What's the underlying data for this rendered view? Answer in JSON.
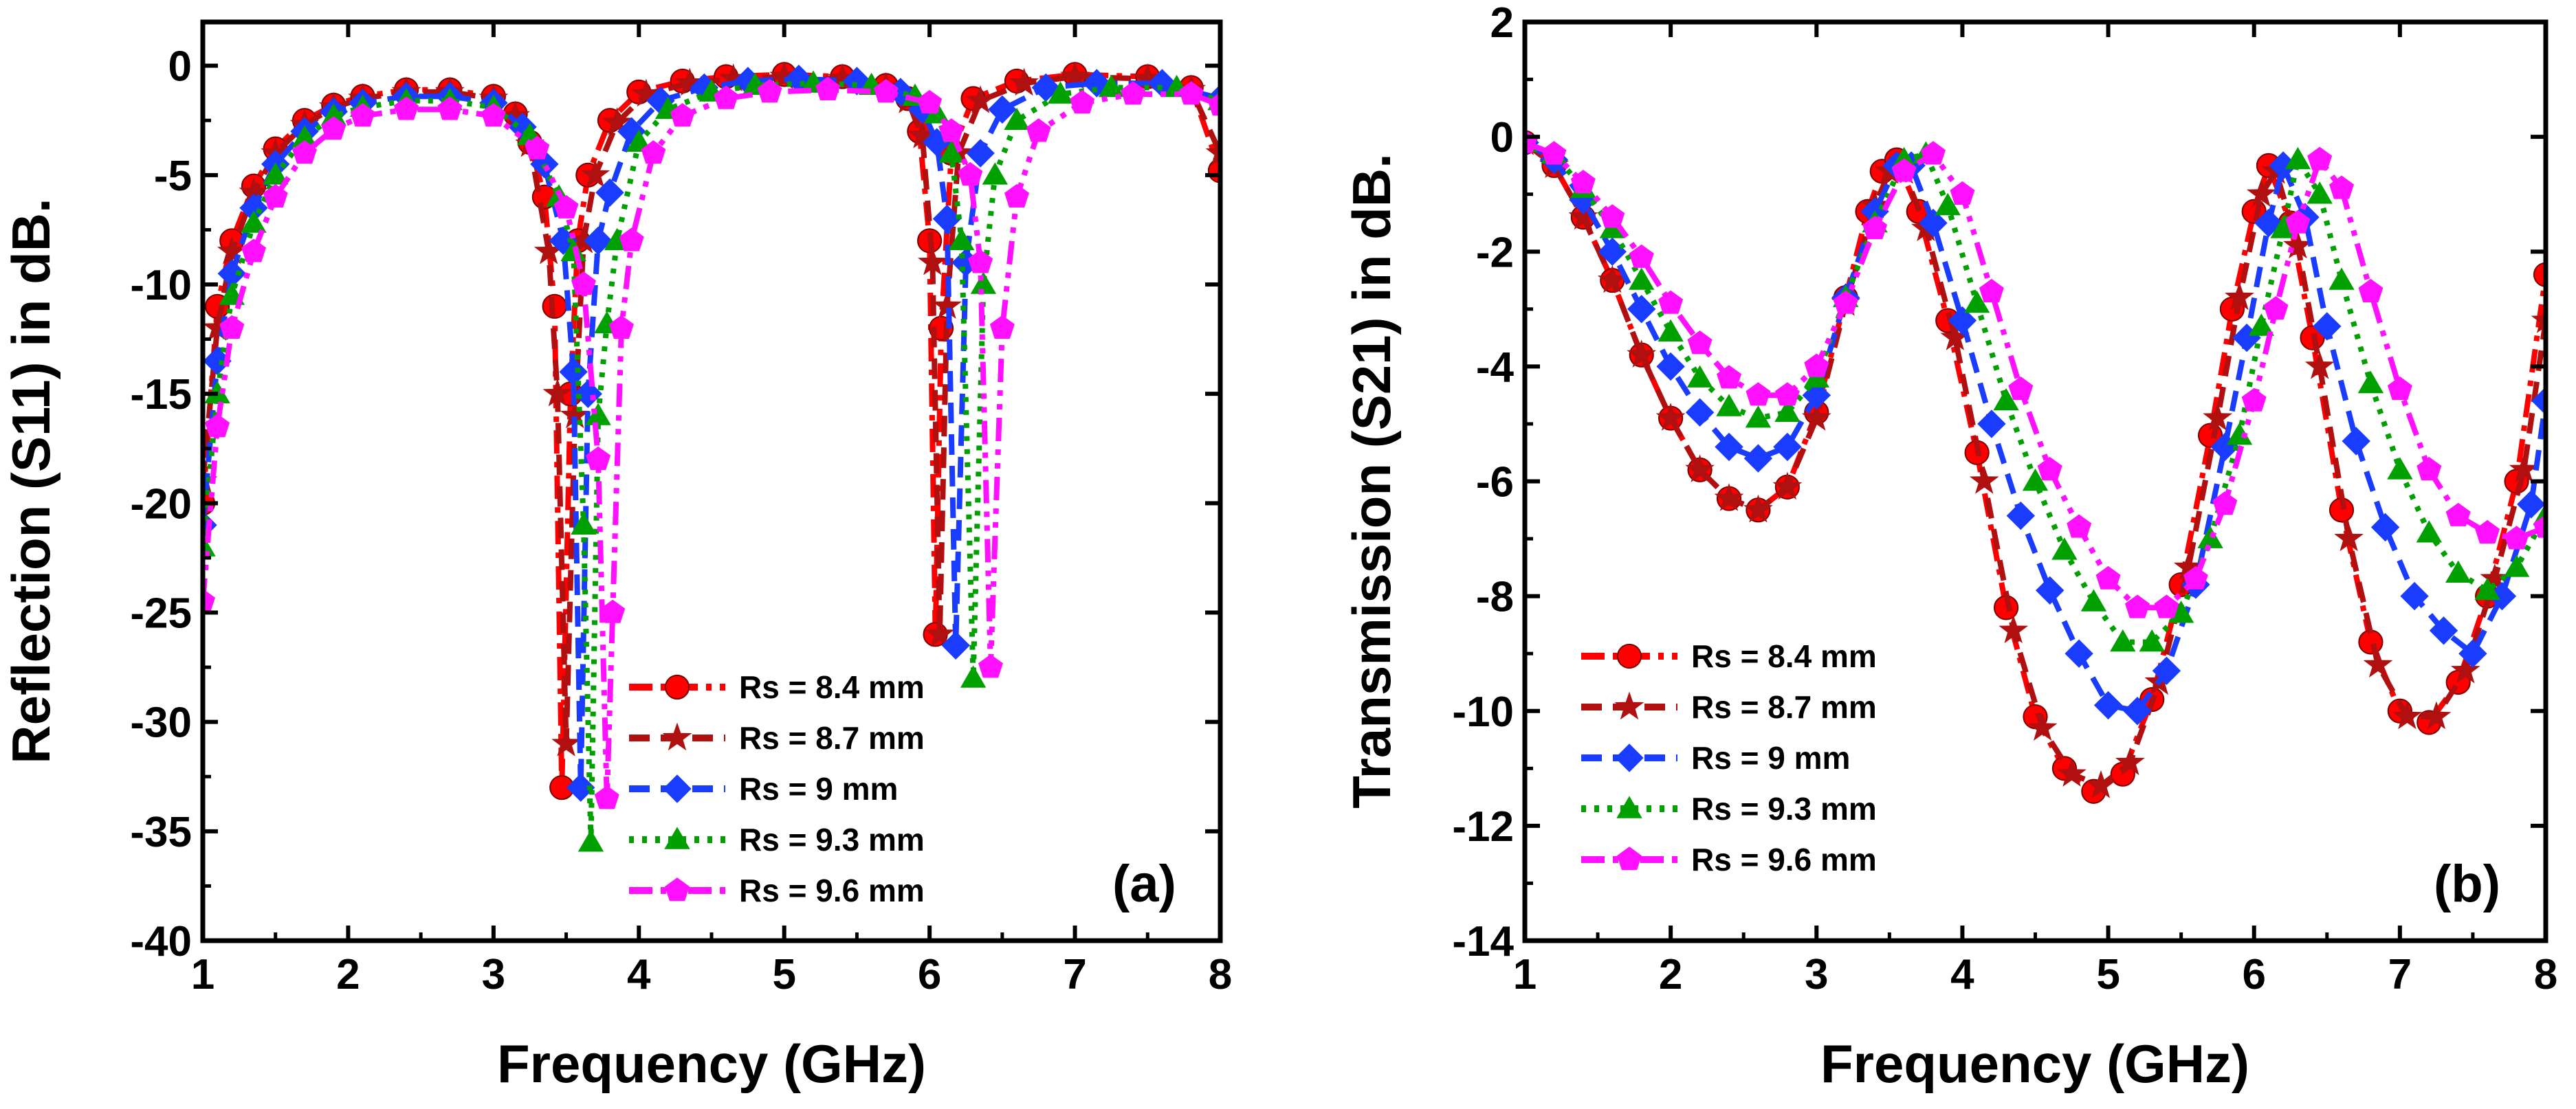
{
  "chart_data": [
    {
      "id": "a",
      "type": "line",
      "panel_label": "(a)",
      "xlabel": "Frequency (GHz)",
      "ylabel": "Reflection (S11) in dB.",
      "xlim": [
        1,
        8
      ],
      "ylim": [
        -40,
        2
      ],
      "xticks": [
        "1",
        "2",
        "3",
        "4",
        "5",
        "6",
        "7",
        "8"
      ],
      "yticks": [
        "0",
        "-5",
        "-10",
        "-15",
        "-20",
        "-25",
        "-30",
        "-35",
        "-40"
      ],
      "legend_position": "bottom-center",
      "series": [
        {
          "name": "Rs  = 8.4 mm",
          "color": "#ff0000",
          "marker": "circle",
          "dash": "dash-dot",
          "x": [
            1.0,
            1.1,
            1.2,
            1.35,
            1.5,
            1.7,
            1.9,
            2.1,
            2.4,
            2.7,
            3.0,
            3.15,
            3.25,
            3.35,
            3.42,
            3.47,
            3.53,
            3.58,
            3.65,
            3.8,
            4.0,
            4.3,
            4.6,
            5.0,
            5.4,
            5.7,
            5.85,
            5.93,
            6.0,
            6.04,
            6.08,
            6.15,
            6.3,
            6.6,
            7.0,
            7.5,
            7.8,
            8.0
          ],
          "y": [
            -20,
            -11,
            -8,
            -5.5,
            -3.8,
            -2.5,
            -1.8,
            -1.4,
            -1.1,
            -1.1,
            -1.4,
            -2.2,
            -3.5,
            -6,
            -11,
            -33,
            -15,
            -8,
            -5,
            -2.5,
            -1.2,
            -0.7,
            -0.5,
            -0.4,
            -0.5,
            -0.9,
            -1.5,
            -3,
            -8,
            -26,
            -12,
            -4,
            -1.5,
            -0.7,
            -0.4,
            -0.5,
            -1.0,
            -4.8
          ]
        },
        {
          "name": "Rs = 8.7 mm",
          "color": "#b01010",
          "marker": "star",
          "dash": "dash",
          "x": [
            1.0,
            1.1,
            1.2,
            1.35,
            1.5,
            1.7,
            1.9,
            2.1,
            2.4,
            2.7,
            3.0,
            3.15,
            3.25,
            3.38,
            3.44,
            3.5,
            3.56,
            3.62,
            3.7,
            3.85,
            4.05,
            4.35,
            4.65,
            5.0,
            5.4,
            5.7,
            5.85,
            5.95,
            6.02,
            6.07,
            6.12,
            6.2,
            6.35,
            6.65,
            7.0,
            7.5,
            7.8,
            8.0
          ],
          "y": [
            -19,
            -12,
            -8.5,
            -5.8,
            -4,
            -2.7,
            -1.9,
            -1.5,
            -1.2,
            -1.2,
            -1.5,
            -2.3,
            -3.6,
            -8.5,
            -15,
            -31,
            -16,
            -8,
            -5,
            -2.6,
            -1.3,
            -0.8,
            -0.6,
            -0.5,
            -0.6,
            -1.0,
            -1.6,
            -3.2,
            -9,
            -26,
            -11,
            -4,
            -1.6,
            -0.8,
            -0.5,
            -0.6,
            -1.1,
            -4
          ]
        },
        {
          "name": "Rs = 9 mm",
          "color": "#1a3cff",
          "marker": "diamond",
          "dash": "dash",
          "x": [
            1.0,
            1.1,
            1.2,
            1.35,
            1.5,
            1.7,
            1.9,
            2.1,
            2.4,
            2.7,
            3.0,
            3.2,
            3.35,
            3.48,
            3.55,
            3.6,
            3.65,
            3.72,
            3.8,
            3.95,
            4.15,
            4.45,
            4.75,
            5.1,
            5.5,
            5.8,
            5.95,
            6.05,
            6.12,
            6.18,
            6.25,
            6.35,
            6.5,
            6.8,
            7.15,
            7.6,
            8.0
          ],
          "y": [
            -21,
            -13.5,
            -9.5,
            -6.5,
            -4.5,
            -3.0,
            -2.1,
            -1.7,
            -1.4,
            -1.4,
            -1.7,
            -2.8,
            -4.5,
            -8,
            -14,
            -33,
            -15,
            -8,
            -5.8,
            -3,
            -1.6,
            -1,
            -0.7,
            -0.6,
            -0.7,
            -1.2,
            -2,
            -3.5,
            -7,
            -26.5,
            -9,
            -4,
            -2,
            -1,
            -0.8,
            -0.8,
            -1.5
          ]
        },
        {
          "name": "Rs = 9.3 mm",
          "color": "#00a000",
          "marker": "triangle",
          "dash": "dot",
          "x": [
            1.0,
            1.1,
            1.2,
            1.35,
            1.5,
            1.7,
            1.9,
            2.1,
            2.4,
            2.7,
            3.0,
            3.25,
            3.45,
            3.55,
            3.62,
            3.67,
            3.72,
            3.78,
            3.85,
            4.0,
            4.2,
            4.5,
            4.8,
            5.2,
            5.6,
            5.9,
            6.05,
            6.15,
            6.22,
            6.3,
            6.37,
            6.45,
            6.6,
            6.9,
            7.25,
            7.7,
            8.0
          ],
          "y": [
            -22,
            -15,
            -10.5,
            -7.2,
            -5,
            -3.3,
            -2.3,
            -1.9,
            -1.6,
            -1.6,
            -1.9,
            -3.2,
            -6,
            -8.5,
            -21,
            -35.5,
            -16,
            -11.8,
            -8,
            -3.5,
            -2,
            -1.2,
            -0.9,
            -0.8,
            -0.9,
            -1.4,
            -2.2,
            -4,
            -8,
            -28,
            -10,
            -5,
            -2.5,
            -1.3,
            -1,
            -1,
            -1.6
          ]
        },
        {
          "name": "Rs = 9.6 mm",
          "color": "#ff10ff",
          "marker": "pentagon",
          "dash": "dash-dot-dot",
          "x": [
            1.0,
            1.1,
            1.2,
            1.35,
            1.5,
            1.7,
            1.9,
            2.1,
            2.4,
            2.7,
            3.0,
            3.3,
            3.5,
            3.62,
            3.72,
            3.78,
            3.82,
            3.88,
            3.95,
            4.1,
            4.3,
            4.6,
            4.9,
            5.3,
            5.7,
            6.0,
            6.15,
            6.28,
            6.35,
            6.42,
            6.5,
            6.6,
            6.75,
            7.05,
            7.4,
            7.8,
            8.0
          ],
          "y": [
            -24.5,
            -16.5,
            -12,
            -8.5,
            -6,
            -4,
            -2.9,
            -2.3,
            -2,
            -2,
            -2.3,
            -3.8,
            -6.5,
            -10,
            -18,
            -33.5,
            -25,
            -12,
            -8,
            -4,
            -2.3,
            -1.5,
            -1.2,
            -1.1,
            -1.2,
            -1.7,
            -3,
            -5,
            -9,
            -27.5,
            -12,
            -6,
            -3,
            -1.7,
            -1.3,
            -1.3,
            -1.8
          ]
        }
      ]
    },
    {
      "id": "b",
      "type": "line",
      "panel_label": "(b)",
      "xlabel": "Frequency (GHz)",
      "ylabel": "Transmission (S21) in dB.",
      "xlim": [
        1,
        8
      ],
      "ylim": [
        -14,
        2
      ],
      "xticks": [
        "1",
        "2",
        "3",
        "4",
        "5",
        "6",
        "7",
        "8"
      ],
      "yticks": [
        "2",
        "0",
        "-2",
        "-4",
        "-6",
        "-8",
        "-10",
        "-12",
        "-14"
      ],
      "legend_position": "bottom-left",
      "series": [
        {
          "name": "Rs = 8.4 mm",
          "color": "#ff0000",
          "marker": "circle",
          "dash": "dash-dot",
          "x": [
            1.0,
            1.2,
            1.4,
            1.6,
            1.8,
            2.0,
            2.2,
            2.4,
            2.6,
            2.8,
            3.0,
            3.2,
            3.35,
            3.45,
            3.55,
            3.7,
            3.9,
            4.1,
            4.3,
            4.5,
            4.7,
            4.9,
            5.1,
            5.3,
            5.5,
            5.7,
            5.85,
            6.0,
            6.1,
            6.25,
            6.4,
            6.6,
            6.8,
            7.0,
            7.2,
            7.4,
            7.6,
            7.8,
            8.0
          ],
          "y": [
            -0.1,
            -0.5,
            -1.4,
            -2.5,
            -3.8,
            -4.9,
            -5.8,
            -6.3,
            -6.5,
            -6.1,
            -4.8,
            -2.8,
            -1.3,
            -0.6,
            -0.4,
            -1.3,
            -3.2,
            -5.5,
            -8.2,
            -10.1,
            -11.0,
            -11.4,
            -11.1,
            -9.8,
            -7.8,
            -5.2,
            -3.0,
            -1.3,
            -0.5,
            -1.5,
            -3.5,
            -6.5,
            -8.8,
            -10.0,
            -10.2,
            -9.5,
            -8.0,
            -6.0,
            -2.4
          ]
        },
        {
          "name": "Rs = 8.7 mm",
          "color": "#b01010",
          "marker": "star",
          "dash": "dash",
          "x": [
            1.0,
            1.2,
            1.4,
            1.6,
            1.8,
            2.0,
            2.2,
            2.4,
            2.6,
            2.8,
            3.0,
            3.2,
            3.4,
            3.5,
            3.6,
            3.75,
            3.95,
            4.15,
            4.35,
            4.55,
            4.75,
            4.95,
            5.15,
            5.35,
            5.55,
            5.75,
            5.9,
            6.05,
            6.15,
            6.3,
            6.45,
            6.65,
            6.85,
            7.05,
            7.25,
            7.45,
            7.65,
            7.85,
            8.0
          ],
          "y": [
            -0.1,
            -0.5,
            -1.4,
            -2.5,
            -3.8,
            -4.9,
            -5.8,
            -6.3,
            -6.5,
            -6.1,
            -4.9,
            -2.9,
            -1.2,
            -0.6,
            -0.6,
            -1.6,
            -3.5,
            -6.0,
            -8.6,
            -10.3,
            -11.1,
            -11.3,
            -10.9,
            -9.5,
            -7.5,
            -4.9,
            -2.8,
            -1.0,
            -0.6,
            -1.9,
            -4.0,
            -7.0,
            -9.2,
            -10.1,
            -10.1,
            -9.3,
            -7.7,
            -5.8,
            -3.2
          ]
        },
        {
          "name": "Rs = 9 mm",
          "color": "#1a3cff",
          "marker": "diamond",
          "dash": "dash",
          "x": [
            1.0,
            1.2,
            1.4,
            1.6,
            1.8,
            2.0,
            2.2,
            2.4,
            2.6,
            2.8,
            3.0,
            3.2,
            3.4,
            3.55,
            3.65,
            3.8,
            4.0,
            4.2,
            4.4,
            4.6,
            4.8,
            5.0,
            5.2,
            5.4,
            5.6,
            5.8,
            5.95,
            6.1,
            6.2,
            6.35,
            6.5,
            6.7,
            6.9,
            7.1,
            7.3,
            7.5,
            7.7,
            7.9,
            8.0
          ],
          "y": [
            -0.1,
            -0.4,
            -1.1,
            -2.0,
            -3.0,
            -4.0,
            -4.8,
            -5.4,
            -5.6,
            -5.4,
            -4.5,
            -2.8,
            -1.3,
            -0.5,
            -0.5,
            -1.5,
            -3.2,
            -5.0,
            -6.6,
            -7.9,
            -9.0,
            -9.9,
            -10.0,
            -9.3,
            -7.8,
            -5.4,
            -3.5,
            -1.5,
            -0.5,
            -1.4,
            -3.3,
            -5.3,
            -6.8,
            -8.0,
            -8.6,
            -9.0,
            -8.0,
            -6.4,
            -4.6
          ]
        },
        {
          "name": "Rs = 9.3 mm",
          "color": "#00a000",
          "marker": "triangle",
          "dash": "dot",
          "x": [
            1.0,
            1.2,
            1.4,
            1.6,
            1.8,
            2.0,
            2.2,
            2.4,
            2.6,
            2.8,
            3.0,
            3.2,
            3.4,
            3.6,
            3.75,
            3.9,
            4.1,
            4.3,
            4.5,
            4.7,
            4.9,
            5.1,
            5.3,
            5.5,
            5.7,
            5.9,
            6.05,
            6.2,
            6.3,
            6.45,
            6.6,
            6.8,
            7.0,
            7.2,
            7.4,
            7.6,
            7.8,
            8.0
          ],
          "y": [
            -0.1,
            -0.3,
            -0.9,
            -1.6,
            -2.5,
            -3.4,
            -4.2,
            -4.7,
            -4.9,
            -4.8,
            -4.2,
            -2.8,
            -1.5,
            -0.4,
            -0.3,
            -1.2,
            -2.9,
            -4.6,
            -6.0,
            -7.2,
            -8.1,
            -8.8,
            -8.8,
            -8.3,
            -7.0,
            -5.2,
            -3.3,
            -1.6,
            -0.4,
            -1.0,
            -2.5,
            -4.3,
            -5.8,
            -6.9,
            -7.6,
            -7.9,
            -7.5,
            -6.6
          ]
        },
        {
          "name": "Rs = 9.6 mm",
          "color": "#ff10ff",
          "marker": "pentagon",
          "dash": "dash-dot-dot",
          "x": [
            1.0,
            1.2,
            1.4,
            1.6,
            1.8,
            2.0,
            2.2,
            2.4,
            2.6,
            2.8,
            3.0,
            3.2,
            3.4,
            3.6,
            3.8,
            4.0,
            4.2,
            4.4,
            4.6,
            4.8,
            5.0,
            5.2,
            5.4,
            5.6,
            5.8,
            6.0,
            6.15,
            6.3,
            6.45,
            6.6,
            6.8,
            7.0,
            7.2,
            7.4,
            7.6,
            7.8,
            8.0
          ],
          "y": [
            -0.1,
            -0.3,
            -0.8,
            -1.4,
            -2.1,
            -2.9,
            -3.6,
            -4.2,
            -4.5,
            -4.5,
            -4.0,
            -2.9,
            -1.6,
            -0.6,
            -0.3,
            -1.0,
            -2.7,
            -4.4,
            -5.8,
            -6.8,
            -7.7,
            -8.2,
            -8.2,
            -7.7,
            -6.4,
            -4.6,
            -3.0,
            -1.5,
            -0.4,
            -0.9,
            -2.7,
            -4.4,
            -5.8,
            -6.6,
            -6.9,
            -7.0,
            -6.8
          ]
        }
      ]
    }
  ]
}
